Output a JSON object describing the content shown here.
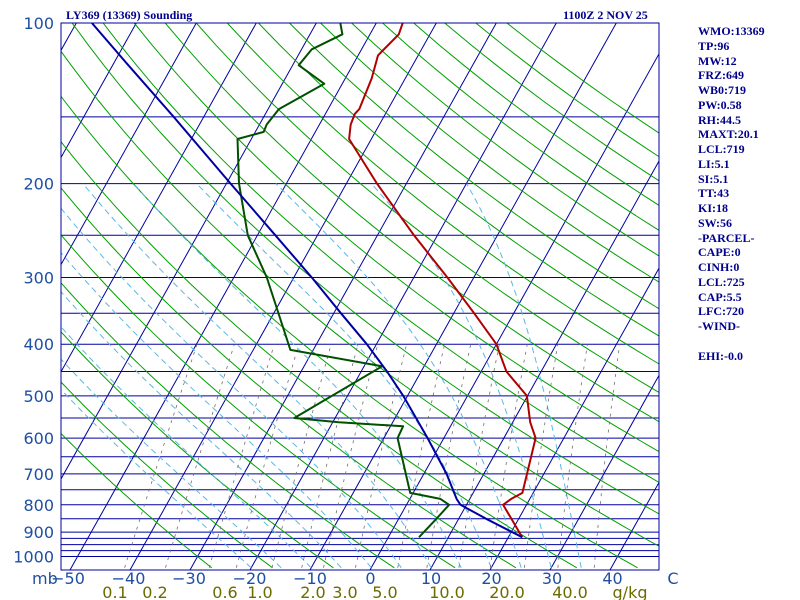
{
  "header": {
    "station": "LY369 (13369) Sounding",
    "valid_time": "1100Z  2 NOV 25"
  },
  "stats": [
    "WMO:13369",
    "TP:96",
    "MW:12",
    "FRZ:649",
    "WB0:719",
    "PW:0.58",
    "RH:44.5",
    "MAXT:20.1",
    "LCL:719",
    "LI:5.1",
    "SI:5.1",
    "TT:43",
    "KI:18",
    "SW:56",
    "-PARCEL-",
    "CAPE:0",
    "CINH:0",
    "LCL:725",
    "CAP:5.5",
    "LFC:720",
    "-WIND-",
    "",
    "EHI:-0.0"
  ],
  "chart_data": {
    "type": "line",
    "chart_kind": "Skew-T log-P thermodynamic diagram",
    "y_axis": {
      "label": "mb",
      "scale": "log",
      "range_mb": [
        1000,
        100
      ],
      "ticks": [
        100,
        200,
        300,
        400,
        500,
        600,
        700,
        800,
        900,
        1000
      ]
    },
    "x_axis": {
      "unit": "C",
      "range_c": [
        -50,
        50
      ],
      "ticks": [
        "−50",
        "−40",
        "−30",
        "−20",
        "−10",
        "0",
        "10",
        "20",
        "30",
        "40",
        "C"
      ]
    },
    "mixing_ratio_axis": {
      "unit": "g/kg",
      "ticks": [
        "0.1",
        "0.2",
        "0.6",
        "1.0",
        "2.0",
        "3.0",
        "5.0",
        "10.0",
        "20.0",
        "40.0"
      ]
    },
    "isobars_mb": [
      100,
      150,
      200,
      250,
      300,
      350,
      400,
      450,
      500,
      550,
      600,
      650,
      700,
      750,
      800,
      850,
      900,
      925,
      950,
      975,
      1000
    ],
    "colors": {
      "temperature": "#b00000",
      "dewpoint": "#005000",
      "parcel": "#0000a0",
      "isobar": "#0000a0",
      "isotherm": "#0000a0",
      "dry_adiabat": "#00a000",
      "moist_adiabat": "#5bb8e0",
      "mixing_ratio": "#707070",
      "labels": "#1f4fa3",
      "mixing_ratio_labels": "#6b6b00"
    },
    "series": [
      {
        "key": "temperature",
        "points": [
          {
            "p": 920,
            "t": 22.3
          },
          {
            "p": 850,
            "t": 18.8
          },
          {
            "p": 800,
            "t": 16.1
          },
          {
            "p": 780,
            "t": 16.9
          },
          {
            "p": 760,
            "t": 18.2
          },
          {
            "p": 700,
            "t": 17.2
          },
          {
            "p": 600,
            "t": 15.3
          },
          {
            "p": 560,
            "t": 12.9
          },
          {
            "p": 500,
            "t": 9.9
          },
          {
            "p": 450,
            "t": 4.2
          },
          {
            "p": 400,
            "t": 0.0
          },
          {
            "p": 350,
            "t": -6.6
          },
          {
            "p": 300,
            "t": -14.4
          },
          {
            "p": 250,
            "t": -23.9
          },
          {
            "p": 200,
            "t": -34.9
          },
          {
            "p": 165,
            "t": -43.7
          },
          {
            "p": 155,
            "t": -44.8
          },
          {
            "p": 148,
            "t": -45.1
          },
          {
            "p": 145,
            "t": -44.8
          },
          {
            "p": 127,
            "t": -45.6
          },
          {
            "p": 115,
            "t": -46.7
          },
          {
            "p": 105,
            "t": -45.2
          },
          {
            "p": 100,
            "t": -45.6
          }
        ]
      },
      {
        "key": "dewpoint",
        "points": [
          {
            "p": 920,
            "t": 5.1
          },
          {
            "p": 850,
            "t": 6.3
          },
          {
            "p": 800,
            "t": 7.1
          },
          {
            "p": 780,
            "t": 5.1
          },
          {
            "p": 760,
            "t": -0.5
          },
          {
            "p": 600,
            "t": -7.7
          },
          {
            "p": 570,
            "t": -7.9
          },
          {
            "p": 560,
            "t": -19.0
          },
          {
            "p": 550,
            "t": -26.8
          },
          {
            "p": 440,
            "t": -17.0
          },
          {
            "p": 410,
            "t": -33.8
          },
          {
            "p": 300,
            "t": -44.5
          },
          {
            "p": 250,
            "t": -51.6
          },
          {
            "p": 200,
            "t": -57.9
          },
          {
            "p": 165,
            "t": -62.3
          },
          {
            "p": 160,
            "t": -58.6
          },
          {
            "p": 155,
            "t": -58.8
          },
          {
            "p": 145,
            "t": -58.2
          },
          {
            "p": 130,
            "t": -53.0
          },
          {
            "p": 120,
            "t": -59.0
          },
          {
            "p": 112,
            "t": -58.3
          },
          {
            "p": 105,
            "t": -54.6
          },
          {
            "p": 100,
            "t": -56.0
          }
        ]
      },
      {
        "key": "parcel",
        "points": [
          {
            "p": 920,
            "t": 22.3
          },
          {
            "p": 850,
            "t": 14.6
          },
          {
            "p": 800,
            "t": 9.0
          },
          {
            "p": 780,
            "t": 7.8
          },
          {
            "p": 700,
            "t": 3.8
          },
          {
            "p": 600,
            "t": -2.7
          },
          {
            "p": 500,
            "t": -10.7
          },
          {
            "p": 450,
            "t": -15.7
          },
          {
            "p": 400,
            "t": -21.6
          },
          {
            "p": 350,
            "t": -28.8
          },
          {
            "p": 300,
            "t": -37.0
          },
          {
            "p": 250,
            "t": -47.0
          },
          {
            "p": 200,
            "t": -59.3
          },
          {
            "p": 150,
            "t": -75.0
          },
          {
            "p": 120,
            "t": -87.4
          },
          {
            "p": 100,
            "t": -97.4
          }
        ]
      }
    ]
  }
}
